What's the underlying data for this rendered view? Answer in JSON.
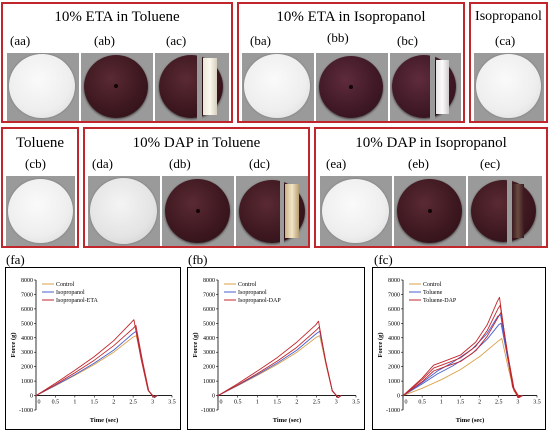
{
  "panels": {
    "a": {
      "title": "10% ETA in Toluene",
      "labels": [
        "(aa)",
        "(ab)",
        "(ac)"
      ]
    },
    "b": {
      "title": "10% ETA in Isopropanol",
      "labels": [
        "(ba)",
        "(bb)",
        "(bc)"
      ]
    },
    "c": {
      "title": "Isopropanol",
      "labels": [
        "(ca)"
      ]
    },
    "cb": {
      "title": "Toluene",
      "labels": [
        "(cb)"
      ]
    },
    "d": {
      "title": "10% DAP in Toluene",
      "labels": [
        "(da)",
        "(db)",
        "(dc)"
      ]
    },
    "e": {
      "title": "10% DAP in Isopropanol",
      "labels": [
        "(ea)",
        "(eb)",
        "(ec)"
      ]
    }
  },
  "colors": {
    "control": "#d9a04a",
    "solvent": "#4a5fd0",
    "treated": "#c0262c",
    "border": "#c0262c"
  },
  "chart_data": [
    {
      "panel_label": "(fa)",
      "type": "line",
      "xlabel": "Time (sec)",
      "ylabel": "Force (g)",
      "xlim": [
        0,
        3.5
      ],
      "ylim": [
        -1000,
        8000
      ],
      "xticks": [
        0,
        0.5,
        1,
        1.5,
        2,
        2.5,
        3,
        3.5
      ],
      "yticks": [
        -1000,
        0,
        1000,
        2000,
        3000,
        4000,
        5000,
        6000,
        7000,
        8000
      ],
      "legend": [
        "Control",
        "Isopropanol",
        "Isopropanol-ETA"
      ],
      "series": [
        {
          "name": "Control",
          "color": "#d9a04a",
          "x": [
            0,
            0.5,
            1,
            1.5,
            2,
            2.5,
            2.58,
            2.75,
            2.9,
            3.05,
            3.12
          ],
          "y": [
            0,
            680,
            1400,
            2150,
            3000,
            4050,
            4150,
            2000,
            300,
            -120,
            0
          ]
        },
        {
          "name": "Isopropanol",
          "color": "#4a5fd0",
          "x": [
            0,
            0.5,
            1,
            1.5,
            2,
            2.5,
            2.58,
            2.75,
            2.9,
            3.05,
            3.12
          ],
          "y": [
            0,
            700,
            1450,
            2250,
            3150,
            4300,
            4450,
            2100,
            300,
            -150,
            0
          ]
        },
        {
          "name": "Isopropanol-ETA",
          "color": "#c0262c",
          "x": [
            0,
            0.5,
            1,
            1.5,
            2,
            2.45,
            2.52,
            2.7,
            2.88,
            3.02,
            3.1
          ],
          "y": [
            0,
            850,
            1750,
            2700,
            3800,
            5050,
            5250,
            2600,
            400,
            -100,
            0
          ]
        },
        {
          "name": "Isopropanol-ETA",
          "color": "#c0262c",
          "x": [
            0,
            0.5,
            1,
            1.5,
            2,
            2.5,
            2.57,
            2.74,
            2.9,
            3.04,
            3.12
          ],
          "y": [
            0,
            760,
            1580,
            2450,
            3450,
            4650,
            4850,
            2400,
            350,
            -120,
            0
          ]
        }
      ]
    },
    {
      "panel_label": "(fb)",
      "type": "line",
      "xlabel": "Time (sec)",
      "ylabel": "Force (g)",
      "xlim": [
        0,
        3.5
      ],
      "ylim": [
        -1000,
        8000
      ],
      "xticks": [
        0,
        0.5,
        1,
        1.5,
        2,
        2.5,
        3,
        3.5
      ],
      "yticks": [
        -1000,
        0,
        1000,
        2000,
        3000,
        4000,
        5000,
        6000,
        7000,
        8000
      ],
      "legend": [
        "Control",
        "Isopropanol",
        "Isopropanol-DAP"
      ],
      "series": [
        {
          "name": "Control",
          "color": "#d9a04a",
          "x": [
            0,
            0.5,
            1,
            1.5,
            2,
            2.5,
            2.58,
            2.75,
            2.9,
            3.05,
            3.12
          ],
          "y": [
            0,
            680,
            1400,
            2150,
            3000,
            4050,
            4150,
            2000,
            300,
            -120,
            0
          ]
        },
        {
          "name": "Isopropanol",
          "color": "#4a5fd0",
          "x": [
            0,
            0.5,
            1,
            1.5,
            2,
            2.5,
            2.58,
            2.75,
            2.9,
            3.05,
            3.12
          ],
          "y": [
            0,
            700,
            1450,
            2250,
            3150,
            4300,
            4450,
            2100,
            300,
            -150,
            0
          ]
        },
        {
          "name": "Isopropanol-DAP",
          "color": "#c0262c",
          "x": [
            0,
            0.5,
            1,
            1.5,
            2,
            2.48,
            2.55,
            2.72,
            2.9,
            3.04,
            3.12
          ],
          "y": [
            0,
            820,
            1700,
            2620,
            3700,
            4900,
            5150,
            2500,
            350,
            -150,
            0
          ]
        },
        {
          "name": "Isopropanol-DAP",
          "color": "#c0262c",
          "x": [
            0,
            0.5,
            1,
            1.5,
            2,
            2.5,
            2.57,
            2.74,
            2.9,
            3.05,
            3.12
          ],
          "y": [
            0,
            740,
            1530,
            2380,
            3350,
            4550,
            4750,
            2300,
            330,
            -130,
            0
          ]
        }
      ]
    },
    {
      "panel_label": "(fc)",
      "type": "line",
      "xlabel": "Time (sec)",
      "ylabel": "Force (g)",
      "xlim": [
        0,
        3.5
      ],
      "ylim": [
        -1000,
        8000
      ],
      "xticks": [
        0,
        0.5,
        1,
        1.5,
        2,
        2.5,
        3,
        3.5
      ],
      "yticks": [
        -1000,
        0,
        1000,
        2000,
        3000,
        4000,
        5000,
        6000,
        7000,
        8000
      ],
      "legend": [
        "Control",
        "Toluene",
        "Toluene-DAP"
      ],
      "series": [
        {
          "name": "Control",
          "color": "#d9a04a",
          "x": [
            0,
            0.5,
            1,
            1.5,
            2,
            2.5,
            2.58,
            2.75,
            2.9,
            3.05,
            3.12
          ],
          "y": [
            0,
            500,
            1100,
            1800,
            2700,
            3800,
            3950,
            1900,
            300,
            -100,
            0
          ]
        },
        {
          "name": "Toluene",
          "color": "#4a5fd0",
          "x": [
            0,
            0.5,
            0.9,
            1.3,
            1.8,
            2.2,
            2.48,
            2.55,
            2.72,
            2.88,
            3.02,
            3.1
          ],
          "y": [
            0,
            900,
            1700,
            2300,
            3200,
            4300,
            5500,
            5600,
            2800,
            500,
            -150,
            0
          ]
        },
        {
          "name": "Toluene",
          "color": "#4a5fd0",
          "x": [
            0,
            0.5,
            0.9,
            1.3,
            1.8,
            2.2,
            2.5,
            2.56,
            2.74,
            2.9,
            3.04,
            3.12
          ],
          "y": [
            0,
            800,
            1500,
            2050,
            2900,
            3900,
            4900,
            5000,
            2500,
            400,
            -120,
            0
          ]
        },
        {
          "name": "Toluene-DAP",
          "color": "#c0262c",
          "x": [
            0,
            0.5,
            0.8,
            1.1,
            1.5,
            1.9,
            2.2,
            2.46,
            2.52,
            2.7,
            2.86,
            3.0,
            3.08
          ],
          "y": [
            0,
            1200,
            2100,
            2400,
            2800,
            3700,
            4900,
            6500,
            6800,
            3300,
            600,
            -150,
            0
          ]
        },
        {
          "name": "Toluene-DAP",
          "color": "#c0262c",
          "x": [
            0,
            0.5,
            0.8,
            1.1,
            1.5,
            1.9,
            2.2,
            2.48,
            2.54,
            2.72,
            2.88,
            3.02,
            3.1
          ],
          "y": [
            0,
            1100,
            1900,
            2200,
            2600,
            3400,
            4500,
            6000,
            6250,
            3100,
            550,
            -140,
            0
          ]
        },
        {
          "name": "Toluene-DAP",
          "color": "#c0262c",
          "x": [
            0,
            0.5,
            0.8,
            1.1,
            1.5,
            1.9,
            2.2,
            2.5,
            2.56,
            2.74,
            2.9,
            3.04,
            3.12
          ],
          "y": [
            0,
            950,
            1700,
            2000,
            2350,
            3100,
            4100,
            5500,
            5750,
            2800,
            500,
            -130,
            0
          ]
        }
      ]
    }
  ]
}
